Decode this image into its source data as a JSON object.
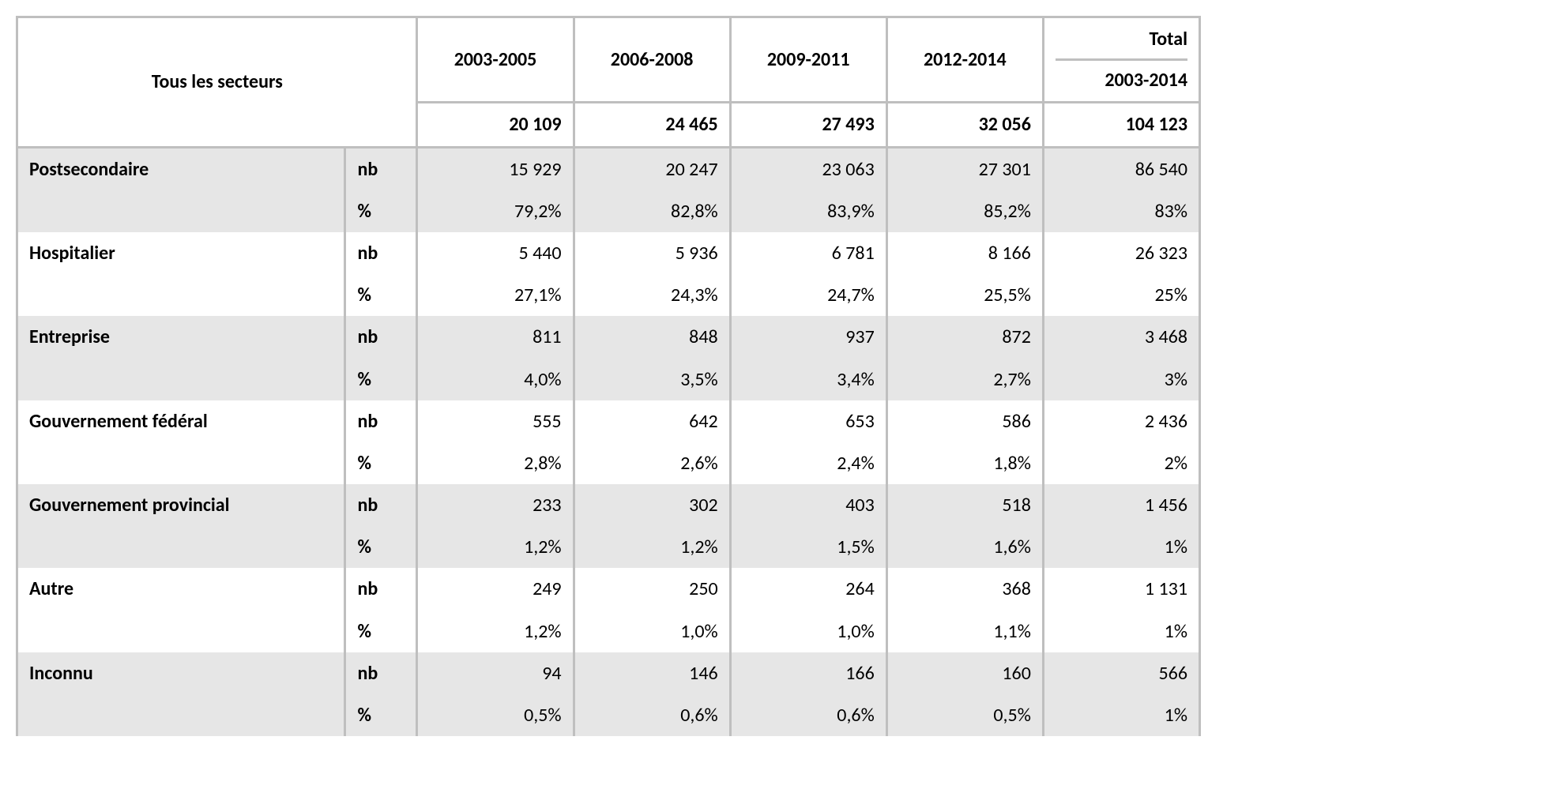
{
  "table": {
    "type": "table",
    "colors": {
      "border": "#bfbfbf",
      "shaded_row_bg": "#e6e6e6",
      "plain_row_bg": "#ffffff",
      "text": "#000000"
    },
    "font": {
      "family": "Calibri",
      "header_weight": 700,
      "body_weight": 400,
      "size_pt": 18
    },
    "header": {
      "corner_label": "Tous les secteurs",
      "periods": [
        "2003-2005",
        "2006-2008",
        "2009-2011",
        "2012-2014"
      ],
      "total_label_top": "Total",
      "total_label_bottom": "2003-2014",
      "totals_row": [
        "20 109",
        "24 465",
        "27 493",
        "32 056",
        "104 123"
      ]
    },
    "metric_labels": {
      "nb": "nb",
      "pct": "%"
    },
    "sectors": [
      {
        "name": "Postsecondaire",
        "shaded": true,
        "nb": [
          "15 929",
          "20 247",
          "23 063",
          "27 301",
          "86 540"
        ],
        "pct": [
          "79,2%",
          "82,8%",
          "83,9%",
          "85,2%",
          "83%"
        ]
      },
      {
        "name": "Hospitalier",
        "shaded": false,
        "nb": [
          "5 440",
          "5 936",
          "6 781",
          "8 166",
          "26 323"
        ],
        "pct": [
          "27,1%",
          "24,3%",
          "24,7%",
          "25,5%",
          "25%"
        ]
      },
      {
        "name": "Entreprise",
        "shaded": true,
        "nb": [
          "811",
          "848",
          "937",
          "872",
          "3 468"
        ],
        "pct": [
          "4,0%",
          "3,5%",
          "3,4%",
          "2,7%",
          "3%"
        ]
      },
      {
        "name": "Gouvernement fédéral",
        "shaded": false,
        "nb": [
          "555",
          "642",
          "653",
          "586",
          "2 436"
        ],
        "pct": [
          "2,8%",
          "2,6%",
          "2,4%",
          "1,8%",
          "2%"
        ]
      },
      {
        "name": "Gouvernement provincial",
        "shaded": true,
        "nb": [
          "233",
          "302",
          "403",
          "518",
          "1 456"
        ],
        "pct": [
          "1,2%",
          "1,2%",
          "1,5%",
          "1,6%",
          "1%"
        ]
      },
      {
        "name": "Autre",
        "shaded": false,
        "nb": [
          "249",
          "250",
          "264",
          "368",
          "1 131"
        ],
        "pct": [
          "1,2%",
          "1,0%",
          "1,0%",
          "1,1%",
          "1%"
        ]
      },
      {
        "name": "Inconnu",
        "shaded": true,
        "nb": [
          "94",
          "146",
          "166",
          "160",
          "566"
        ],
        "pct": [
          "0,5%",
          "0,6%",
          "0,6%",
          "0,5%",
          "1%"
        ]
      }
    ]
  }
}
